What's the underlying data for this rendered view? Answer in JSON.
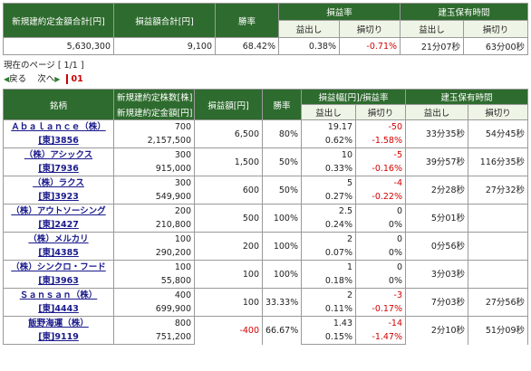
{
  "summary": {
    "headers": {
      "total_amount": "新規建約定金額合計[円]",
      "total_pl": "損益額合計[円]",
      "win_rate": "勝率",
      "pl_rate": "損益率",
      "holding_time": "建玉保有時間",
      "profit": "益出し",
      "loss": "損切り"
    },
    "values": {
      "total_amount": "5,630,300",
      "total_pl": "9,100",
      "win_rate": "68.42%",
      "pl_rate_profit": "0.38%",
      "pl_rate_loss": "-0.71%",
      "hold_profit": "21分07秒",
      "hold_loss": "63分00秒"
    }
  },
  "pager": {
    "current_page_label": "現在のページ [ 1/1 ]",
    "back": "戻る",
    "next": "次へ",
    "page": "01"
  },
  "detail": {
    "headers": {
      "stock": "銘柄",
      "shares": "新規建約定株数[株]",
      "amount": "新規建約定金額[円]",
      "pl": "損益額[円]",
      "win_rate": "勝率",
      "pl_width": "損益幅[円]/損益率",
      "holding_time": "建玉保有時間",
      "profit": "益出し",
      "loss": "損切り"
    },
    "rows": [
      {
        "name": "Ａｂａｌａｎｃｅ（株）",
        "code": "[東]3856",
        "shares": "700",
        "amount": "2,157,500",
        "pl": "6,500",
        "win": "80%",
        "pw_profit": "19.17",
        "pr_profit": "0.62%",
        "pw_loss": "-50",
        "pr_loss": "-1.58%",
        "t_profit": "33分35秒",
        "t_loss": "54分45秒"
      },
      {
        "name": "（株）アシックス",
        "code": "[東]7936",
        "shares": "300",
        "amount": "915,000",
        "pl": "1,500",
        "win": "50%",
        "pw_profit": "10",
        "pr_profit": "0.33%",
        "pw_loss": "-5",
        "pr_loss": "-0.16%",
        "t_profit": "39分57秒",
        "t_loss": "116分35秒"
      },
      {
        "name": "（株）ラクス",
        "code": "[東]3923",
        "shares": "300",
        "amount": "549,900",
        "pl": "600",
        "win": "50%",
        "pw_profit": "5",
        "pr_profit": "0.27%",
        "pw_loss": "-4",
        "pr_loss": "-0.22%",
        "t_profit": "2分28秒",
        "t_loss": "27分32秒"
      },
      {
        "name": "（株）アウトソーシング",
        "code": "[東]2427",
        "shares": "200",
        "amount": "210,800",
        "pl": "500",
        "win": "100%",
        "pw_profit": "2.5",
        "pr_profit": "0.24%",
        "pw_loss": "0",
        "pr_loss": "0%",
        "t_profit": "5分01秒",
        "t_loss": ""
      },
      {
        "name": "（株）メルカリ",
        "code": "[東]4385",
        "shares": "100",
        "amount": "290,200",
        "pl": "200",
        "win": "100%",
        "pw_profit": "2",
        "pr_profit": "0.07%",
        "pw_loss": "0",
        "pr_loss": "0%",
        "t_profit": "0分56秒",
        "t_loss": ""
      },
      {
        "name": "（株）シンクロ・フード",
        "code": "[東]3963",
        "shares": "100",
        "amount": "55,800",
        "pl": "100",
        "win": "100%",
        "pw_profit": "1",
        "pr_profit": "0.18%",
        "pw_loss": "0",
        "pr_loss": "0%",
        "t_profit": "3分03秒",
        "t_loss": ""
      },
      {
        "name": "Ｓａｎｓａｎ（株）",
        "code": "[東]4443",
        "shares": "400",
        "amount": "699,900",
        "pl": "100",
        "win": "33.33%",
        "pw_profit": "2",
        "pr_profit": "0.11%",
        "pw_loss": "-3",
        "pr_loss": "-0.17%",
        "t_profit": "7分03秒",
        "t_loss": "27分56秒"
      },
      {
        "name": "飯野海運（株）",
        "code": "[東]9119",
        "shares": "800",
        "amount": "751,200",
        "pl": "-400",
        "win": "66.67%",
        "pw_profit": "1.43",
        "pr_profit": "0.15%",
        "pw_loss": "-14",
        "pr_loss": "-1.47%",
        "t_profit": "2分10秒",
        "t_loss": "51分09秒"
      }
    ]
  }
}
